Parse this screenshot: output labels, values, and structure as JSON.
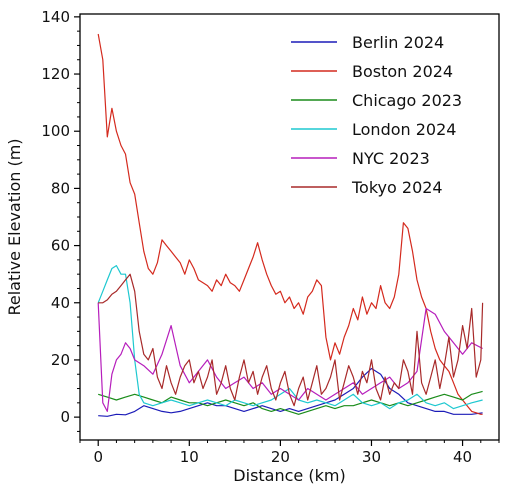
{
  "chart_data": {
    "type": "line",
    "title": "",
    "xlabel": "Distance (km)",
    "ylabel": "Relative Elevation (m)",
    "xlim": [
      -2,
      44
    ],
    "ylim": [
      -8,
      141
    ],
    "xticks": [
      0,
      10,
      20,
      30,
      40
    ],
    "yticks": [
      0,
      20,
      40,
      60,
      80,
      100,
      120,
      140
    ],
    "grid": false,
    "legend_position": "top-right",
    "series": [
      {
        "name": "Berlin 2024",
        "color": "#1c1cb8",
        "x": [
          0,
          1,
          2,
          3,
          4,
          5,
          6,
          7,
          8,
          9,
          10,
          11,
          12,
          13,
          14,
          15,
          16,
          17,
          18,
          19,
          20,
          21,
          22,
          23,
          24,
          25,
          26,
          27,
          28,
          29,
          30,
          31,
          32,
          33,
          34,
          35,
          36,
          37,
          38,
          39,
          40,
          41,
          42.2
        ],
        "y": [
          0.5,
          0.3,
          1,
          0.8,
          2,
          4,
          3,
          2,
          1.5,
          2,
          3,
          4,
          5,
          4,
          4,
          3,
          2,
          3,
          4,
          3,
          2,
          3,
          2,
          3,
          4,
          5,
          6,
          8,
          10,
          14,
          17,
          15,
          10,
          8,
          5,
          4,
          3,
          2,
          2,
          1,
          1,
          1,
          1.5
        ]
      },
      {
        "name": "Boston 2024",
        "color": "#d42a1e",
        "x": [
          0,
          0.5,
          1,
          1.5,
          2,
          2.5,
          3,
          3.5,
          4,
          4.5,
          5,
          5.5,
          6,
          6.5,
          7,
          7.5,
          8,
          8.5,
          9,
          9.5,
          10,
          10.5,
          11,
          11.5,
          12,
          12.5,
          13,
          13.5,
          14,
          14.5,
          15,
          15.5,
          16,
          16.5,
          17,
          17.5,
          18,
          18.5,
          19,
          19.5,
          20,
          20.5,
          21,
          21.5,
          22,
          22.5,
          23,
          23.5,
          24,
          24.5,
          25,
          25.5,
          26,
          26.5,
          27,
          27.5,
          28,
          28.5,
          29,
          29.5,
          30,
          30.5,
          31,
          31.5,
          32,
          32.5,
          33,
          33.5,
          34,
          34.5,
          35,
          35.5,
          36,
          36.5,
          37,
          37.5,
          38,
          38.5,
          39,
          39.5,
          40,
          40.5,
          41,
          41.5,
          42,
          42.2
        ],
        "y": [
          134,
          125,
          98,
          108,
          100,
          95,
          92,
          82,
          78,
          68,
          58,
          52,
          50,
          54,
          62,
          60,
          58,
          56,
          54,
          50,
          55,
          52,
          48,
          47,
          46,
          44,
          48,
          46,
          50,
          47,
          46,
          44,
          48,
          52,
          56,
          61,
          55,
          50,
          46,
          43,
          44,
          40,
          42,
          38,
          40,
          36,
          42,
          44,
          48,
          46,
          28,
          20,
          26,
          22,
          28,
          32,
          38,
          34,
          42,
          36,
          40,
          38,
          46,
          40,
          38,
          42,
          50,
          68,
          66,
          58,
          48,
          42,
          38,
          30,
          24,
          20,
          18,
          16,
          12,
          8,
          6,
          4,
          2,
          1.5,
          1,
          1
        ]
      },
      {
        "name": "Chicago 2023",
        "color": "#1a8c1a",
        "x": [
          0,
          1,
          2,
          3,
          4,
          5,
          6,
          7,
          8,
          9,
          10,
          11,
          12,
          13,
          14,
          15,
          16,
          17,
          18,
          19,
          20,
          21,
          22,
          23,
          24,
          25,
          26,
          27,
          28,
          29,
          30,
          31,
          32,
          33,
          34,
          35,
          36,
          37,
          38,
          39,
          40,
          41,
          42.2
        ],
        "y": [
          8,
          7,
          6,
          7,
          8,
          7,
          6,
          5,
          7,
          6,
          5,
          5,
          4,
          5,
          6,
          5,
          4,
          5,
          3,
          2,
          3,
          2,
          1,
          2,
          3,
          4,
          3,
          4,
          4,
          5,
          6,
          5,
          4,
          5,
          4,
          5,
          6,
          7,
          8,
          7,
          6,
          8,
          9
        ]
      },
      {
        "name": "London 2024",
        "color": "#1ec8d0",
        "x": [
          0,
          0.5,
          1,
          1.5,
          2,
          2.5,
          3,
          3.5,
          4,
          4.5,
          5,
          6,
          7,
          8,
          9,
          10,
          11,
          12,
          13,
          14,
          15,
          16,
          17,
          18,
          19,
          20,
          21,
          22,
          23,
          24,
          25,
          26,
          27,
          28,
          29,
          30,
          31,
          32,
          33,
          34,
          35,
          36,
          37,
          38,
          39,
          40,
          41,
          42.2
        ],
        "y": [
          40,
          44,
          48,
          52,
          53,
          50,
          50,
          40,
          20,
          8,
          5,
          4,
          5,
          6,
          5,
          4,
          5,
          6,
          5,
          4,
          6,
          5,
          4,
          5,
          6,
          8,
          10,
          6,
          5,
          6,
          5,
          4,
          6,
          8,
          5,
          4,
          5,
          3,
          5,
          6,
          8,
          5,
          4,
          5,
          3,
          4,
          5,
          6
        ]
      },
      {
        "name": "NYC 2023",
        "color": "#b61ebc",
        "x": [
          0,
          0.5,
          1,
          1.5,
          2,
          2.5,
          3,
          3.5,
          4,
          5,
          6,
          7,
          8,
          9,
          10,
          11,
          12,
          13,
          14,
          15,
          16,
          17,
          18,
          19,
          20,
          21,
          22,
          23,
          24,
          25,
          26,
          27,
          28,
          29,
          30,
          31,
          32,
          33,
          34,
          35,
          36,
          37,
          38,
          39,
          40,
          41,
          42.2
        ],
        "y": [
          40,
          5,
          2,
          15,
          20,
          22,
          26,
          24,
          20,
          18,
          15,
          22,
          32,
          18,
          12,
          16,
          20,
          14,
          10,
          12,
          14,
          10,
          12,
          8,
          10,
          8,
          6,
          10,
          8,
          6,
          8,
          10,
          12,
          8,
          10,
          12,
          14,
          10,
          12,
          16,
          38,
          36,
          30,
          26,
          22,
          26,
          24
        ]
      },
      {
        "name": "Tokyo 2024",
        "color": "#a82a2a",
        "x": [
          0,
          0.5,
          1,
          1.5,
          2,
          2.5,
          3,
          3.5,
          4,
          4.5,
          5,
          5.5,
          6,
          6.5,
          7,
          7.5,
          8,
          8.5,
          9,
          9.5,
          10,
          10.5,
          11,
          11.5,
          12,
          12.5,
          13,
          13.5,
          14,
          14.5,
          15,
          15.5,
          16,
          16.5,
          17,
          17.5,
          18,
          18.5,
          19,
          19.5,
          20,
          20.5,
          21,
          21.5,
          22,
          22.5,
          23,
          23.5,
          24,
          24.5,
          25,
          25.5,
          26,
          26.5,
          27,
          27.5,
          28,
          28.5,
          29,
          29.5,
          30,
          30.5,
          31,
          31.5,
          32,
          32.5,
          33,
          33.5,
          34,
          34.5,
          35,
          35.5,
          36,
          36.5,
          37,
          37.5,
          38,
          38.5,
          39,
          39.5,
          40,
          40.5,
          41,
          41.5,
          42,
          42.2
        ],
        "y": [
          40,
          40,
          41,
          43,
          44,
          46,
          48,
          50,
          44,
          30,
          22,
          20,
          24,
          14,
          10,
          18,
          12,
          8,
          14,
          18,
          20,
          12,
          16,
          10,
          14,
          20,
          8,
          12,
          18,
          10,
          6,
          14,
          20,
          12,
          16,
          8,
          14,
          18,
          10,
          6,
          12,
          16,
          8,
          4,
          10,
          14,
          6,
          12,
          18,
          8,
          10,
          14,
          20,
          6,
          12,
          18,
          14,
          8,
          16,
          12,
          20,
          10,
          6,
          14,
          8,
          12,
          10,
          20,
          16,
          8,
          30,
          12,
          8,
          14,
          20,
          10,
          18,
          28,
          14,
          20,
          32,
          24,
          38,
          14,
          20,
          40
        ]
      }
    ]
  }
}
